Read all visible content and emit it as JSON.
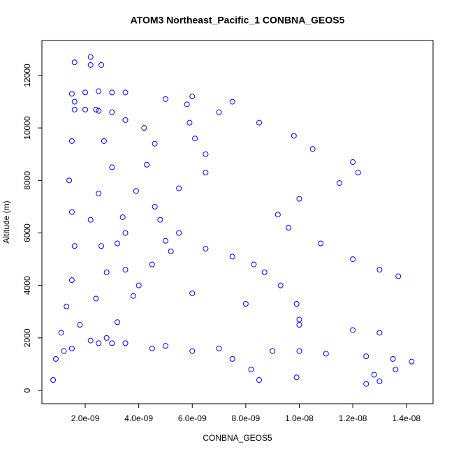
{
  "chart_data": {
    "type": "scatter",
    "title": "ATOM3 Northeast_Pacific_1 CONBNA_GEOS5",
    "x_label": "CONBNA_GEOS5",
    "y_label": "Altitude (m)",
    "color": "#0000ff",
    "xlim": [
      3.8e-10,
      1.5e-08
    ],
    "ylim": [
      -505,
      13330
    ],
    "xticks": [
      {
        "value": 2e-09,
        "label": "2.0e-09"
      },
      {
        "value": 4e-09,
        "label": "4.0e-09"
      },
      {
        "value": 6e-09,
        "label": "6.0e-09"
      },
      {
        "value": 8e-09,
        "label": "8.0e-09"
      },
      {
        "value": 1e-08,
        "label": "1.0e-08"
      },
      {
        "value": 1.2e-08,
        "label": "1.2e-08"
      },
      {
        "value": 1.4e-08,
        "label": "1.4e-08"
      }
    ],
    "yticks": [
      0,
      2000,
      4000,
      6000,
      8000,
      10000,
      12000
    ],
    "x": [
      8e-10,
      9e-10,
      1.1e-09,
      1.3e-09,
      1.5e-09,
      1.6e-09,
      1.5e-09,
      1.4e-09,
      1.5e-09,
      1.6e-09,
      1.6e-09,
      1.2e-09,
      1.8e-09,
      2.4e-09,
      2.8e-09,
      2.6e-09,
      2.2e-09,
      2.5e-09,
      3e-09,
      2.7e-09,
      2.4e-09,
      2.2e-09,
      2.5e-09,
      3.2e-09,
      3.8e-09,
      3.5e-09,
      3.2e-09,
      3.4e-09,
      3.9e-09,
      4.3e-09,
      4.6e-09,
      4.2e-09,
      3.5e-09,
      4.5e-09,
      5.2e-09,
      5.5e-09,
      4.8e-09,
      4.6e-09,
      5.5e-09,
      6.5e-09,
      6.5e-09,
      6.1e-09,
      5.9e-09,
      5e-09,
      6e-09,
      7.5e-09,
      3e-09,
      5e-09,
      7e-09,
      9e-09,
      1.1e-08,
      1.25e-08,
      1.35e-08,
      1.42e-08,
      1.36e-08,
      1.28e-08,
      1.25e-08,
      1.3e-08,
      3.5e-09,
      5e-09,
      6.5e-09,
      7.5e-09,
      8.3e-09,
      8.7e-09,
      9.3e-09,
      9.9e-09,
      1e-08,
      1e-08,
      9.9e-09,
      5.8e-09,
      7e-09,
      8.5e-09,
      9.8e-09,
      1.05e-08,
      1.2e-08,
      1.22e-08,
      1.15e-08,
      1e-08,
      9.2e-09,
      9.6e-09,
      1.08e-08,
      1.2e-08,
      1.3e-08,
      1.37e-08,
      4e-09,
      6e-09,
      8e-09,
      1e-08,
      1.2e-08,
      1.3e-08,
      1.5e-09,
      2.2e-09,
      2.8e-09,
      3.5e-09,
      4.5e-09,
      6e-09,
      7.5e-09,
      8.2e-09,
      8.5e-09,
      1.5e-09,
      2e-09,
      2.5e-09,
      3e-09,
      3.5e-09,
      1.6e-09,
      2e-09,
      2.5e-09,
      3e-09,
      2.2e-09,
      2.6e-09
    ],
    "values": [
      400,
      1200,
      2200,
      3200,
      4200,
      5500,
      6800,
      8000,
      9500,
      11000,
      12500,
      1500,
      2500,
      3500,
      4500,
      5500,
      6500,
      7500,
      8500,
      9500,
      10700,
      12700,
      1800,
      2600,
      3600,
      4600,
      5600,
      6600,
      7600,
      8600,
      9400,
      10000,
      10300,
      4800,
      5300,
      6000,
      6500,
      7000,
      7700,
      8300,
      9000,
      9600,
      10200,
      11100,
      11200,
      11000,
      1800,
      1700,
      1600,
      1500,
      1400,
      1300,
      1200,
      1100,
      800,
      600,
      250,
      350,
      6000,
      5700,
      5400,
      5100,
      4800,
      4500,
      4000,
      3300,
      2500,
      1500,
      500,
      10900,
      10600,
      10200,
      9700,
      9200,
      8700,
      8300,
      7900,
      7300,
      6700,
      6200,
      5600,
      5000,
      4600,
      4350,
      4000,
      3700,
      3300,
      2700,
      2300,
      2200,
      1600,
      1900,
      2000,
      1800,
      1600,
      1500,
      1200,
      800,
      400,
      11300,
      11350,
      11400,
      11350,
      11350,
      10700,
      10700,
      10650,
      10600,
      12400,
      12400
    ]
  }
}
